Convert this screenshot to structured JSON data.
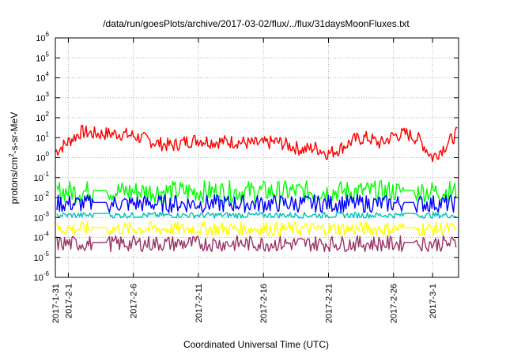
{
  "chart_data": {
    "type": "line",
    "title": "/data/run/goesPlots/archive/2017-03-02/flux/../flux/31daysMoonFluxes.txt",
    "xlabel": "Coordinated Universal Time (UTC)",
    "ylabel": "protons/cm2-s-sr-MeV",
    "y_scale": "log",
    "ylim_exp": [
      -6,
      6
    ],
    "xlim_days": [
      "2017-01-31",
      "2017-03-03"
    ],
    "x_tick_labels": [
      "2017-1-31",
      "2017-2-1",
      "2017-2-6",
      "2017-2-11",
      "2017-2-16",
      "2017-2-21",
      "2017-2-26",
      "2017-3-1"
    ],
    "y_tick_labels": [
      "10^-6",
      "10^-5",
      "10^-4",
      "10^-3",
      "10^-2",
      "10^-1",
      "10^0",
      "10^1",
      "10^2",
      "10^3",
      "10^4",
      "10^5",
      "10^6"
    ],
    "grid": true,
    "series": [
      {
        "color": "#ff0000",
        "x": [
          "2017-01-31",
          "2017-02-01",
          "2017-02-02",
          "2017-02-03",
          "2017-02-05",
          "2017-02-06",
          "2017-02-07",
          "2017-02-08",
          "2017-02-09",
          "2017-02-10",
          "2017-02-11",
          "2017-02-12",
          "2017-02-13",
          "2017-02-14",
          "2017-02-15",
          "2017-02-16",
          "2017-02-17",
          "2017-02-18",
          "2017-02-19",
          "2017-02-20",
          "2017-02-21",
          "2017-02-22",
          "2017-02-23",
          "2017-02-24",
          "2017-02-25",
          "2017-02-26",
          "2017-02-27",
          "2017-02-28",
          "2017-03-01",
          "2017-03-02",
          "2017-03-03"
        ],
        "log10_y": [
          0.3,
          0.8,
          1.3,
          1.2,
          1.2,
          1.1,
          0.9,
          0.7,
          0.6,
          0.8,
          0.9,
          0.8,
          0.8,
          0.8,
          0.7,
          0.7,
          0.8,
          0.6,
          0.4,
          0.5,
          0.2,
          0.5,
          0.9,
          1.0,
          0.7,
          1.1,
          1.2,
          0.9,
          0.0,
          0.6,
          1.3
        ]
      },
      {
        "color": "#00ff00",
        "level_log10": -1.75,
        "noise_log10": 0.55
      },
      {
        "color": "#0000ff",
        "level_log10": -2.35,
        "noise_log10": 0.45
      },
      {
        "color": "#00c0c0",
        "level_log10": -2.9,
        "noise_log10": 0.15
      },
      {
        "color": "#ffff00",
        "level_log10": -3.6,
        "noise_log10": 0.35
      },
      {
        "color": "#993366",
        "level_log10": -4.35,
        "noise_log10": 0.4
      }
    ]
  }
}
